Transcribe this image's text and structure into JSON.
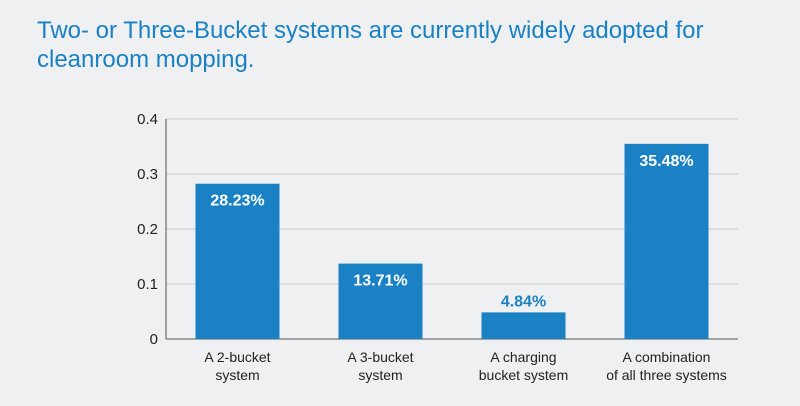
{
  "colors": {
    "background": "#eef0f1",
    "bar": "#1a82c4",
    "title": "#1a82c4",
    "grid": "#c8cacc",
    "axis": "#555555",
    "text": "#222222",
    "label_inside": "#ffffff"
  },
  "chart_data": {
    "type": "bar",
    "title": "Two- or Three-Bucket systems are currently widely adopted for cleanroom mopping.",
    "xlabel": "",
    "ylabel": "",
    "categories": [
      [
        "A 2-bucket",
        "system"
      ],
      [
        "A 3-bucket",
        "system"
      ],
      [
        "A charging",
        "bucket system"
      ],
      [
        "A combination",
        "of all three systems"
      ]
    ],
    "values": [
      0.2823,
      0.1371,
      0.0484,
      0.3548
    ],
    "data_labels": [
      "28.23%",
      "13.71%",
      "4.84%",
      "35.48%"
    ],
    "ylim": [
      0,
      0.4
    ],
    "yticks": [
      0,
      0.1,
      0.2,
      0.3,
      0.4
    ],
    "ytick_labels": [
      "0",
      "0.1",
      "0.2",
      "0.3",
      "0.4"
    ],
    "grid": true,
    "legend": "none"
  }
}
